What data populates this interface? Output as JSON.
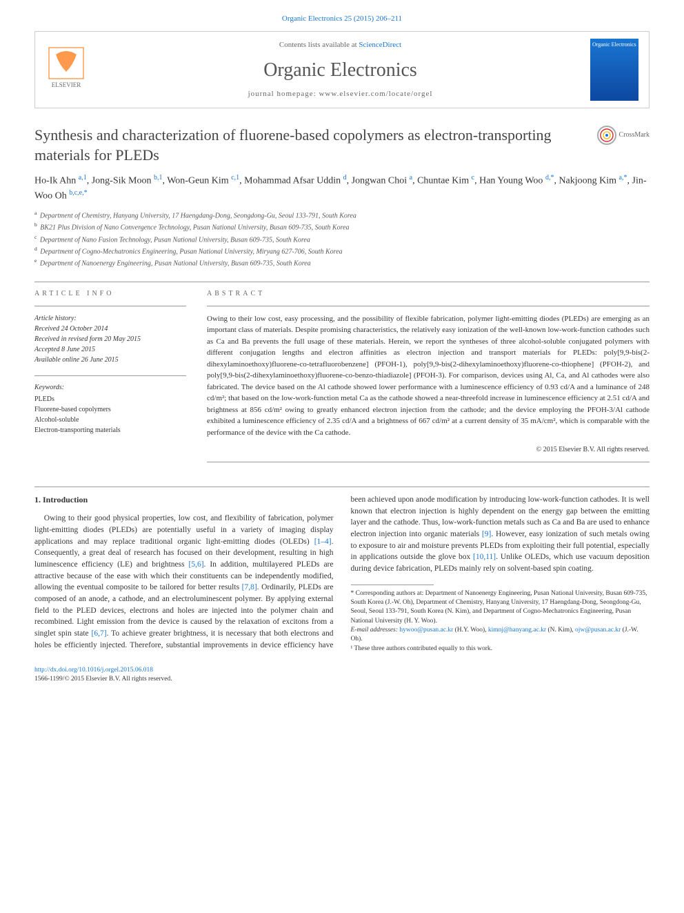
{
  "citation": {
    "journal_link": "Organic Electronics 25 (2015) 206–211"
  },
  "header": {
    "contents_text": "Contents lists available at ",
    "contents_link": "ScienceDirect",
    "journal_name": "Organic Electronics",
    "homepage_label": "journal homepage: ",
    "homepage_url": "www.elsevier.com/locate/orgel",
    "cover_label": "Organic Electronics"
  },
  "crossmark": {
    "label": "CrossMark"
  },
  "title": "Synthesis and characterization of fluorene-based copolymers as electron-transporting materials for PLEDs",
  "authors_html": "Ho-Ik Ahn <sup>a,1</sup>, Jong-Sik Moon <sup>b,1</sup>, Won-Geun Kim <sup>c,1</sup>, Mohammad Afsar Uddin <sup>d</sup>, Jongwan Choi <sup>a</sup>, Chuntae Kim <sup>c</sup>, Han Young Woo <sup>d,*</sup>, Nakjoong Kim <sup>a,*</sup>, Jin-Woo Oh <sup>b,c,e,*</sup>",
  "affiliations": [
    {
      "sup": "a",
      "text": "Department of Chemistry, Hanyang University, 17 Haengdang-Dong, Seongdong-Gu, Seoul 133-791, South Korea"
    },
    {
      "sup": "b",
      "text": "BK21 Plus Division of Nano Convergence Technology, Pusan National University, Busan 609-735, South Korea"
    },
    {
      "sup": "c",
      "text": "Department of Nano Fusion Technology, Pusan National University, Busan 609-735, South Korea"
    },
    {
      "sup": "d",
      "text": "Department of Cogno-Mechatronics Engineering, Pusan National University, Miryang 627-706, South Korea"
    },
    {
      "sup": "e",
      "text": "Department of Nanoenergy Engineering, Pusan National University, Busan 609-735, South Korea"
    }
  ],
  "article_info": {
    "heading": "ARTICLE INFO",
    "history_label": "Article history:",
    "received": "Received 24 October 2014",
    "revised": "Received in revised form 20 May 2015",
    "accepted": "Accepted 8 June 2015",
    "online": "Available online 26 June 2015",
    "keywords_label": "Keywords:",
    "keywords": [
      "PLEDs",
      "Fluorene-based copolymers",
      "Alcohol-soluble",
      "Electron-transporting materials"
    ]
  },
  "abstract": {
    "heading": "ABSTRACT",
    "text": "Owing to their low cost, easy processing, and the possibility of flexible fabrication, polymer light-emitting diodes (PLEDs) are emerging as an important class of materials. Despite promising characteristics, the relatively easy ionization of the well-known low-work-function cathodes such as Ca and Ba prevents the full usage of these materials. Herein, we report the syntheses of three alcohol-soluble conjugated polymers with different conjugation lengths and electron affinities as electron injection and transport materials for PLEDs: poly[9,9-bis(2-dihexylaminoethoxy)fluorene-co-tetrafluorobenzene] (PFOH-1), poly[9,9-bis(2-dihexylaminoethoxy)fluorene-co-thiophene] (PFOH-2), and poly[9,9-bis(2-dihexylaminoethoxy)fluorene-co-benzo-thiadiazole] (PFOH-3). For comparison, devices using Al, Ca, and Al cathodes were also fabricated. The device based on the Al cathode showed lower performance with a luminescence efficiency of 0.93 cd/A and a luminance of 248 cd/m²; that based on the low-work-function metal Ca as the cathode showed a near-threefold increase in luminescence efficiency at 2.51 cd/A and brightness at 856 cd/m² owing to greatly enhanced electron injection from the cathode; and the device employing the PFOH-3/Al cathode exhibited a luminescence efficiency of 2.35 cd/A and a brightness of 667 cd/m² at a current density of 35 mA/cm², which is comparable with the performance of the device with the Ca cathode.",
    "copyright": "© 2015 Elsevier B.V. All rights reserved."
  },
  "body": {
    "section1_heading": "1. Introduction",
    "para1_a": "Owing to their good physical properties, low cost, and flexibility of fabrication, polymer light-emitting diodes (PLEDs) are potentially useful in a variety of imaging display applications and may replace traditional organic light-emitting diodes (OLEDs) ",
    "ref1": "[1–4]",
    "para1_b": ". Consequently, a great deal of research has focused on their development, resulting in high luminescence efficiency (LE) and brightness ",
    "ref2": "[5,6]",
    "para1_c": ". In addition, multilayered PLEDs are attractive because of the ease with which their constituents can be independently modified,",
    "para2_a": "allowing the eventual composite to be tailored for better results ",
    "ref3": "[7,8]",
    "para2_b": ". Ordinarily, PLEDs are composed of an anode, a cathode, and an electroluminescent polymer. By applying external field to the PLED devices, electrons and holes are injected into the polymer chain and recombined. Light emission from the device is caused by the relaxation of excitons from a singlet spin state ",
    "ref4": "[6,7]",
    "para2_c": ". To achieve greater brightness, it is necessary that both electrons and holes be efficiently injected. Therefore, substantial improvements in device efficiency have been achieved upon anode modification by introducing low-work-function cathodes. It is well known that electron injection is highly dependent on the energy gap between the emitting layer and the cathode. Thus, low-work-function metals such as Ca and Ba are used to enhance electron injection into organic materials ",
    "ref5": "[9]",
    "para2_d": ". However, easy ionization of such metals owing to exposure to air and moisture prevents PLEDs from exploiting their full potential, especially in applications outside the glove box ",
    "ref6": "[10,11]",
    "para2_e": ". Unlike OLEDs, which use vacuum deposition during device fabrication, PLEDs mainly rely on solvent-based spin coating."
  },
  "footnotes": {
    "corresponding": "* Corresponding authors at: Department of Nanoenergy Engineering, Pusan National University, Busan 609-735, South Korea (J.-W. Oh), Department of Chemistry, Hanyang University, 17 Haengdang-Dong, Seongdong-Gu, Seoul, Seoul 133-791, South Korea (N. Kim), and Department of Cogno-Mechatronics Engineering, Pusan National University (H. Y. Woo).",
    "email_label": "E-mail addresses: ",
    "email1": "hywoo@pusan.ac.kr",
    "email1_who": " (H.Y. Woo), ",
    "email2": "kimnj@hanyang.ac.kr",
    "email2_who": " (N. Kim), ",
    "email3": "ojw@pusan.ac.kr",
    "email3_who": " (J.-W. Oh).",
    "equal": "¹ These three authors contributed equally to this work."
  },
  "footer": {
    "doi": "http://dx.doi.org/10.1016/j.orgel.2015.06.018",
    "issn_copyright": "1566-1199/© 2015 Elsevier B.V. All rights reserved."
  },
  "colors": {
    "link": "#1976d2",
    "text": "#333333",
    "heading_grey": "#666666",
    "border": "#cccccc"
  }
}
